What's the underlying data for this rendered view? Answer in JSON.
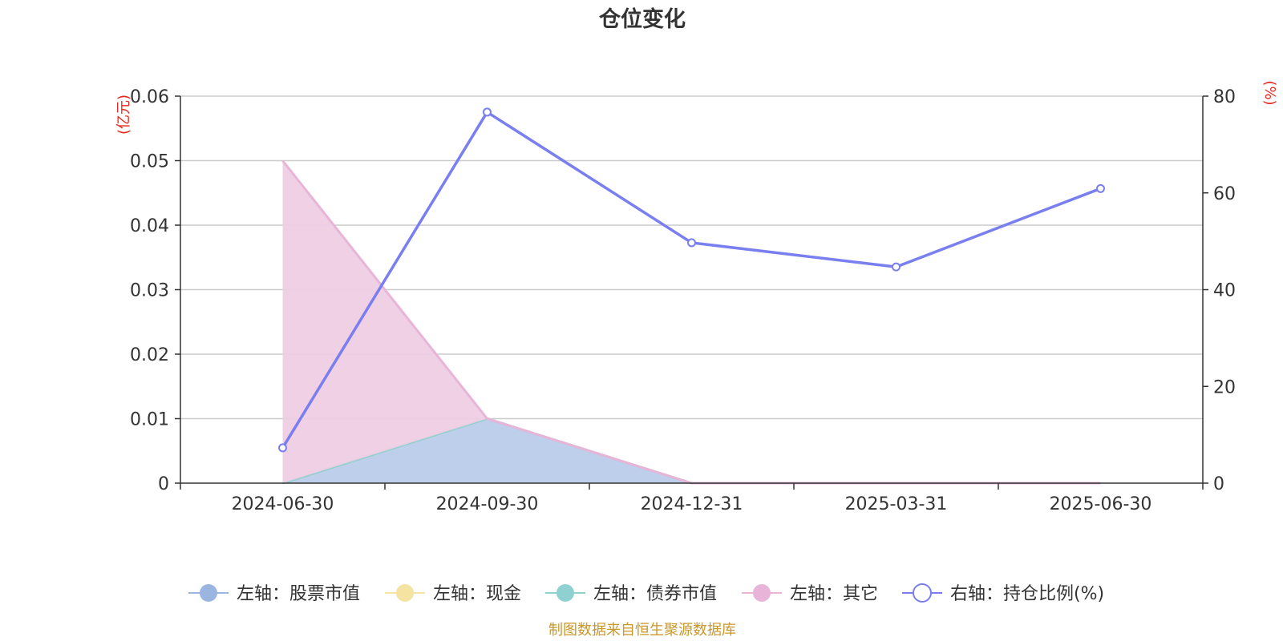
{
  "chart_data": {
    "type": "line",
    "title": "仓位变化",
    "left_axis_unit": "(亿元)",
    "right_axis_unit": "(%)",
    "categories": [
      "2024-06-30",
      "2024-09-30",
      "2024-12-31",
      "2025-03-31",
      "2025-06-30"
    ],
    "left_axis": {
      "ylim": [
        0,
        0.06
      ],
      "ticks": [
        "0",
        "0.01",
        "0.02",
        "0.03",
        "0.04",
        "0.05",
        "0.06"
      ],
      "tick_values": [
        0,
        0.01,
        0.02,
        0.03,
        0.04,
        0.05,
        0.06
      ]
    },
    "right_axis": {
      "ylim": [
        0,
        80
      ],
      "ticks": [
        "0",
        "20",
        "40",
        "60",
        "80"
      ],
      "tick_values": [
        0,
        20,
        40,
        60,
        80
      ]
    },
    "grid": true,
    "legend_position": "bottom",
    "stacked_area": true,
    "series": [
      {
        "name": "左轴：股票市值",
        "axis": "left",
        "type": "area",
        "color": "#9ab6e0",
        "fill": "#b9cce9",
        "values": [
          0,
          0.01,
          0,
          0,
          0
        ]
      },
      {
        "name": "左轴：现金",
        "axis": "left",
        "type": "area",
        "color": "#f5e3a1",
        "fill": "#f7ecc0",
        "values": [
          0,
          0,
          0,
          0,
          0
        ]
      },
      {
        "name": "左轴：债券市值",
        "axis": "left",
        "type": "area",
        "color": "#8fd1d1",
        "fill": "#b6e2e2",
        "values": [
          0,
          0,
          0,
          0,
          0
        ]
      },
      {
        "name": "左轴：其它",
        "axis": "left",
        "type": "area",
        "color": "#e8b4d8",
        "fill": "#eeceE4",
        "values": [
          0.05,
          0,
          0,
          0,
          0
        ]
      },
      {
        "name": "右轴：持仓比例(%)",
        "axis": "right",
        "type": "line",
        "color": "#7a7ff0",
        "values": [
          7.3,
          76.7,
          49.7,
          44.7,
          60.9
        ]
      }
    ],
    "source": "制图数据来自恒生聚源数据库"
  }
}
